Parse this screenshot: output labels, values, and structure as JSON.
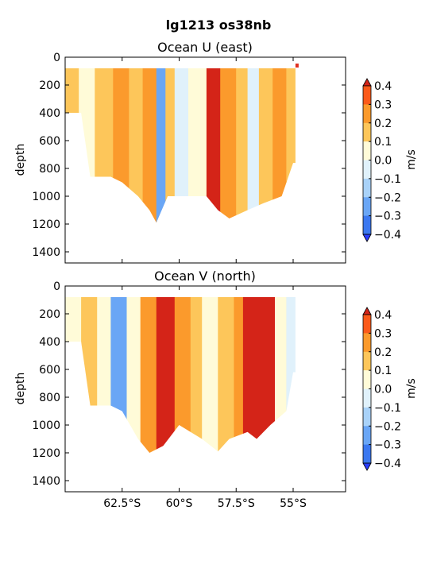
{
  "chart_data": {
    "type": "heatmap",
    "title": "lg1213 os38nb",
    "colorbar": {
      "label": "m/s",
      "levels": [
        -0.4,
        -0.3,
        -0.2,
        -0.1,
        0.0,
        0.1,
        0.2,
        0.3,
        0.4
      ],
      "tick_labels": [
        "0.4",
        "0.3",
        "0.2",
        "0.1",
        "0.0",
        "−0.1",
        "−0.2",
        "−0.3",
        "−0.4"
      ],
      "colors": [
        "#2a3dff",
        "#3b78f0",
        "#6aa6f5",
        "#a9d2f8",
        "#e0f1fb",
        "#fffbd8",
        "#fde7a1",
        "#fdc65a",
        "#fb9a2c",
        "#f26316",
        "#d42418",
        "#e03020"
      ],
      "extend": "both"
    },
    "x_axis": {
      "ticks": [
        -62.5,
        -60.0,
        -57.5,
        -55.0
      ],
      "tick_labels": [
        "62.5°S",
        "60°S",
        "57.5°S",
        "55°S"
      ],
      "xlim": [
        -65.0,
        -52.7
      ]
    },
    "panels": [
      {
        "title": "Ocean U (east)",
        "ylabel": "depth",
        "ylim": [
          1480,
          0
        ],
        "yticks": [
          0,
          200,
          400,
          600,
          800,
          1000,
          1200,
          1400
        ],
        "coverage": [
          {
            "lat": -65.0,
            "top": 80,
            "bottom": 400
          },
          {
            "lat": -64.3,
            "top": 80,
            "bottom": 400
          },
          {
            "lat": -63.9,
            "top": 80,
            "bottom": 860
          },
          {
            "lat": -63.0,
            "top": 80,
            "bottom": 860
          },
          {
            "lat": -62.5,
            "top": 80,
            "bottom": 900
          },
          {
            "lat": -61.8,
            "top": 80,
            "bottom": 1000
          },
          {
            "lat": -61.3,
            "top": 80,
            "bottom": 1100
          },
          {
            "lat": -61.0,
            "top": 80,
            "bottom": 1190
          },
          {
            "lat": -60.5,
            "top": 80,
            "bottom": 1000
          },
          {
            "lat": -59.7,
            "top": 80,
            "bottom": 1000
          },
          {
            "lat": -58.8,
            "top": 80,
            "bottom": 1000
          },
          {
            "lat": -58.3,
            "top": 80,
            "bottom": 1100
          },
          {
            "lat": -57.8,
            "top": 80,
            "bottom": 1160
          },
          {
            "lat": -57.0,
            "top": 80,
            "bottom": 1100
          },
          {
            "lat": -56.3,
            "top": 80,
            "bottom": 1050
          },
          {
            "lat": -55.5,
            "top": 80,
            "bottom": 1000
          },
          {
            "lat": -55.0,
            "top": 80,
            "bottom": 760
          },
          {
            "lat": -54.9,
            "top": 80,
            "bottom": 760
          }
        ],
        "bands": [
          {
            "lat0": -65.0,
            "lat1": -64.4,
            "value": 0.1
          },
          {
            "lat0": -64.4,
            "lat1": -63.7,
            "value": 0.05
          },
          {
            "lat0": -63.7,
            "lat1": -62.9,
            "value": 0.15
          },
          {
            "lat0": -62.9,
            "lat1": -62.2,
            "value": 0.2
          },
          {
            "lat0": -62.2,
            "lat1": -61.6,
            "value": 0.1
          },
          {
            "lat0": -61.6,
            "lat1": -61.0,
            "value": 0.25
          },
          {
            "lat0": -61.0,
            "lat1": -60.6,
            "value": -0.15
          },
          {
            "lat0": -60.6,
            "lat1": -60.2,
            "value": 0.1
          },
          {
            "lat0": -60.2,
            "lat1": -59.6,
            "value": -0.05
          },
          {
            "lat0": -59.6,
            "lat1": -59.0,
            "value": 0.05
          },
          {
            "lat0": -59.0,
            "lat1": -58.8,
            "value": 0.0
          },
          {
            "lat0": -58.8,
            "lat1": -58.2,
            "value": 0.35
          },
          {
            "lat0": -58.2,
            "lat1": -57.5,
            "value": 0.2
          },
          {
            "lat0": -57.5,
            "lat1": -57.0,
            "value": 0.15
          },
          {
            "lat0": -57.0,
            "lat1": -56.5,
            "value": -0.05
          },
          {
            "lat0": -56.5,
            "lat1": -55.9,
            "value": 0.15
          },
          {
            "lat0": -55.9,
            "lat1": -55.3,
            "value": 0.25
          },
          {
            "lat0": -55.3,
            "lat1": -54.9,
            "value": 0.1
          }
        ]
      },
      {
        "title": "Ocean V (north)",
        "ylabel": "depth",
        "ylim": [
          1480,
          0
        ],
        "yticks": [
          0,
          200,
          400,
          600,
          800,
          1000,
          1200,
          1400
        ],
        "coverage": [
          {
            "lat": -65.0,
            "top": 80,
            "bottom": 400
          },
          {
            "lat": -64.3,
            "top": 80,
            "bottom": 400
          },
          {
            "lat": -63.9,
            "top": 80,
            "bottom": 860
          },
          {
            "lat": -63.0,
            "top": 80,
            "bottom": 860
          },
          {
            "lat": -62.5,
            "top": 80,
            "bottom": 900
          },
          {
            "lat": -61.8,
            "top": 80,
            "bottom": 1100
          },
          {
            "lat": -61.3,
            "top": 80,
            "bottom": 1200
          },
          {
            "lat": -60.7,
            "top": 80,
            "bottom": 1150
          },
          {
            "lat": -60.0,
            "top": 80,
            "bottom": 1000
          },
          {
            "lat": -59.0,
            "top": 80,
            "bottom": 1100
          },
          {
            "lat": -58.3,
            "top": 80,
            "bottom": 1190
          },
          {
            "lat": -57.8,
            "top": 80,
            "bottom": 1100
          },
          {
            "lat": -57.0,
            "top": 80,
            "bottom": 1050
          },
          {
            "lat": -56.6,
            "top": 80,
            "bottom": 1100
          },
          {
            "lat": -56.0,
            "top": 80,
            "bottom": 1000
          },
          {
            "lat": -55.3,
            "top": 80,
            "bottom": 900
          },
          {
            "lat": -55.0,
            "top": 80,
            "bottom": 620
          },
          {
            "lat": -54.9,
            "top": 80,
            "bottom": 620
          }
        ],
        "bands": [
          {
            "lat0": -65.0,
            "lat1": -64.3,
            "value": 0.05
          },
          {
            "lat0": -64.3,
            "lat1": -63.6,
            "value": 0.1
          },
          {
            "lat0": -63.6,
            "lat1": -63.0,
            "value": 0.05
          },
          {
            "lat0": -63.0,
            "lat1": -62.3,
            "value": -0.15
          },
          {
            "lat0": -62.3,
            "lat1": -61.7,
            "value": 0.05
          },
          {
            "lat0": -61.7,
            "lat1": -61.0,
            "value": 0.2
          },
          {
            "lat0": -61.0,
            "lat1": -60.2,
            "value": 0.3
          },
          {
            "lat0": -60.2,
            "lat1": -59.5,
            "value": 0.25
          },
          {
            "lat0": -59.5,
            "lat1": -59.0,
            "value": 0.15
          },
          {
            "lat0": -59.0,
            "lat1": -58.3,
            "value": 0.05
          },
          {
            "lat0": -58.3,
            "lat1": -57.6,
            "value": 0.15
          },
          {
            "lat0": -57.6,
            "lat1": -57.2,
            "value": 0.25
          },
          {
            "lat0": -57.2,
            "lat1": -56.4,
            "value": 0.35
          },
          {
            "lat0": -56.4,
            "lat1": -55.8,
            "value": 0.3
          },
          {
            "lat0": -55.8,
            "lat1": -55.3,
            "value": 0.05
          },
          {
            "lat0": -55.3,
            "lat1": -54.9,
            "value": -0.05
          }
        ]
      }
    ]
  }
}
